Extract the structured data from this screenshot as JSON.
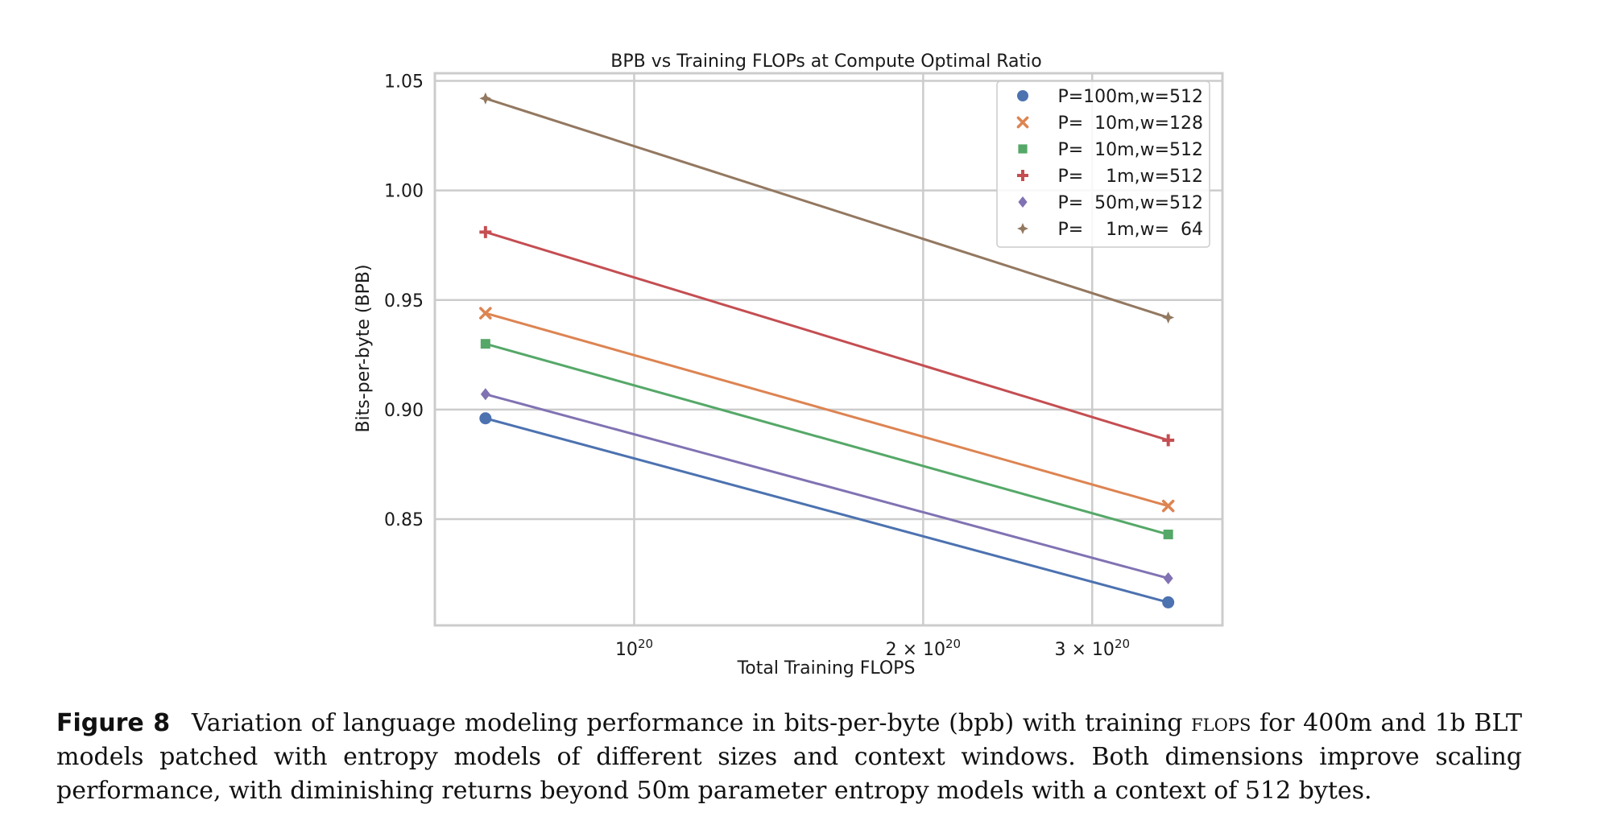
{
  "chart_data": {
    "type": "line",
    "title": "BPB vs Training FLOPs at Compute Optimal Ratio",
    "xlabel": "Total Training FLOPS",
    "ylabel": "Bits-per-byte (BPB)",
    "x_scale": "log",
    "xlim": [
      6.2e+19,
      4.1e+20
    ],
    "ylim": [
      0.8015,
      1.0535
    ],
    "grid": true,
    "legend_position": "top-right",
    "x_ticks": [
      {
        "value": 1e+20,
        "base": "10",
        "exp": "20",
        "mult": ""
      },
      {
        "value": 2e+20,
        "base": "10",
        "exp": "20",
        "mult": "2 × "
      },
      {
        "value": 3e+20,
        "base": "10",
        "exp": "20",
        "mult": "3 × "
      }
    ],
    "y_ticks": [
      {
        "value": 0.85,
        "label": "0.85"
      },
      {
        "value": 0.9,
        "label": "0.90"
      },
      {
        "value": 0.95,
        "label": "0.95"
      },
      {
        "value": 1.0,
        "label": "1.00"
      },
      {
        "value": 1.05,
        "label": "1.05"
      }
    ],
    "x": [
      7e+19,
      3.6e+20
    ],
    "series": [
      {
        "name": "P=100m,w=512",
        "values": [
          0.896,
          0.812
        ],
        "color": "#4c72b0",
        "marker": "circle"
      },
      {
        "name": "P=  10m,w=128",
        "values": [
          0.944,
          0.856
        ],
        "color": "#dd8452",
        "marker": "x"
      },
      {
        "name": "P=  10m,w=512",
        "values": [
          0.93,
          0.843
        ],
        "color": "#55a868",
        "marker": "square"
      },
      {
        "name": "P=    1m,w=512",
        "values": [
          0.981,
          0.886
        ],
        "color": "#c44e52",
        "marker": "plus"
      },
      {
        "name": "P=  50m,w=512",
        "values": [
          0.907,
          0.823
        ],
        "color": "#8172b3",
        "marker": "diamond"
      },
      {
        "name": "P=    1m,w=  64",
        "values": [
          1.042,
          0.942
        ],
        "color": "#937860",
        "marker": "star"
      }
    ]
  },
  "caption": {
    "label": "Figure 8",
    "text_before": "Variation of language modeling performance in bits-per-byte (bpb) with training",
    "smallcaps": "flops",
    "text_after": "for 400m and 1b BLT models patched with entropy models of different sizes and context windows. Both dimensions improve scaling performance, with diminishing returns beyond 50m parameter entropy models with a context of 512 bytes."
  }
}
